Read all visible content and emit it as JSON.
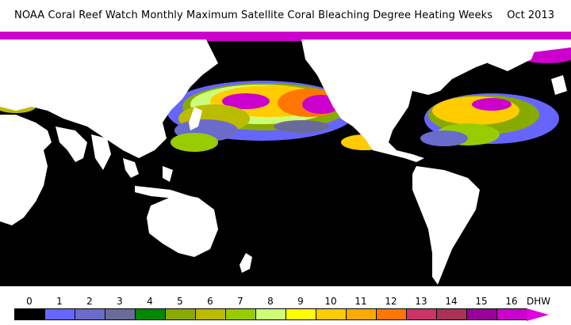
{
  "header": {
    "title": "NOAA Coral Reef Watch Monthly Maximum Satellite Coral Bleaching Degree Heating Weeks",
    "date": "Oct 2013"
  },
  "map": {
    "ocean_color": "#000000",
    "land_color": "#ffffff"
  },
  "legend": {
    "unit": "DHW",
    "labels": [
      "0",
      "1",
      "2",
      "3",
      "4",
      "5",
      "6",
      "7",
      "8",
      "9",
      "10",
      "11",
      "12",
      "13",
      "14",
      "15",
      "16"
    ],
    "colors": [
      "#000000",
      "#6666ff",
      "#6b6bcc",
      "#6b6b99",
      "#008800",
      "#88aa00",
      "#bbbb00",
      "#99cc00",
      "#ccff77",
      "#ffff00",
      "#ffcc00",
      "#ffaa00",
      "#ff7700",
      "#cc3366",
      "#aa3355",
      "#990099",
      "#cc00cc"
    ],
    "arrow_color": "#e000e0"
  }
}
